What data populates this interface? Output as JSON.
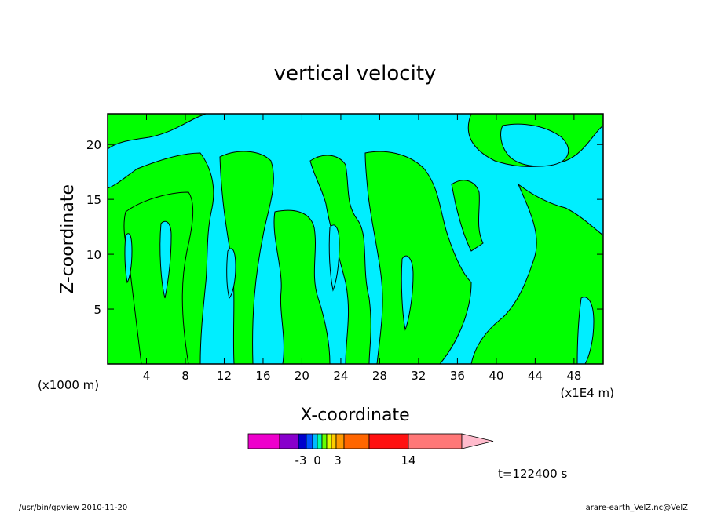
{
  "chart_data": {
    "type": "heatmap",
    "title": "vertical velocity",
    "xlabel": "X-coordinate",
    "ylabel": "Z-coordinate",
    "x_unit_left": "(x1000 m)",
    "x_unit_right": "(x1E4 m)",
    "x_ticks": [
      "4",
      "8",
      "12",
      "16",
      "20",
      "24",
      "28",
      "32",
      "36",
      "40",
      "44",
      "48"
    ],
    "y_ticks": [
      "5",
      "10",
      "15",
      "20"
    ],
    "xlim": [
      0,
      51
    ],
    "ylim": [
      0,
      22.8
    ],
    "colors": {
      "negative": "#00eeff",
      "positive": "#00ff00",
      "contour": "#000000"
    },
    "colorbar": {
      "colors": [
        "#ee00cc",
        "#8800cc",
        "#0000cc",
        "#0055ff",
        "#00bbff",
        "#00ffaa",
        "#66ff00",
        "#ddff00",
        "#ffcc00",
        "#ff9900",
        "#ff6600",
        "#ff1111",
        "#ff7777",
        "#ffbbcc"
      ],
      "labels": [
        "-3",
        "0",
        "3",
        "14"
      ]
    },
    "time_label": "t=122400 s"
  },
  "footer": {
    "left": "/usr/bin/gpview   2010-11-20",
    "right": "arare-earth_VelZ.nc@VelZ"
  }
}
